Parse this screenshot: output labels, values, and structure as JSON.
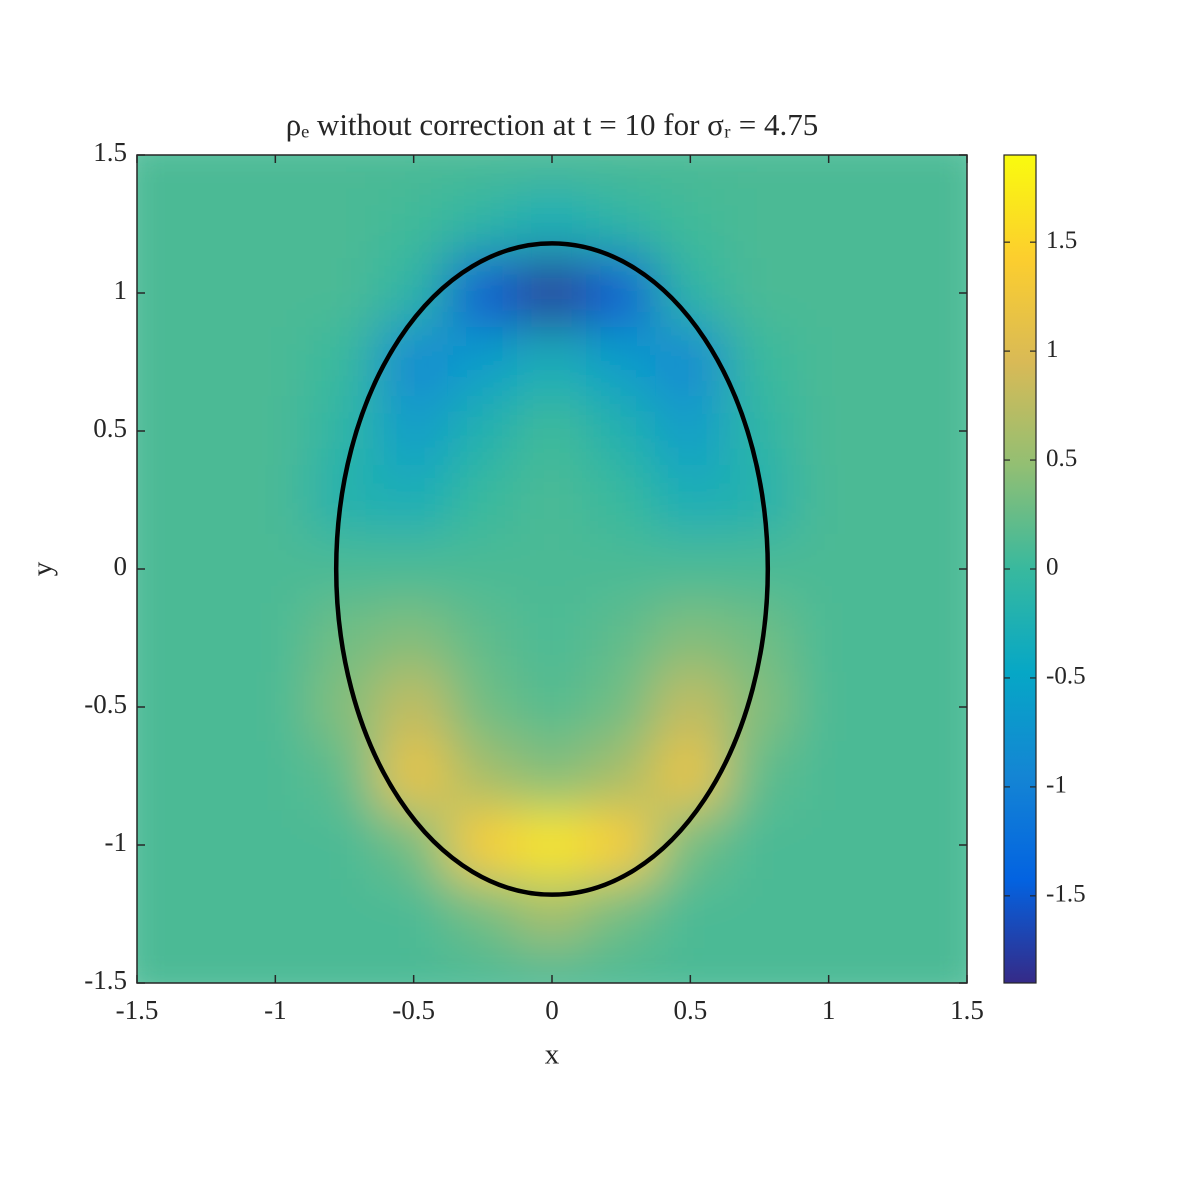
{
  "chart_data": {
    "type": "heatmap",
    "title": "ρₑ without correction at t = 10 for σᵣ = 4.75",
    "x_label": "x",
    "y_label": "y",
    "xlim": [
      -1.5,
      1.5
    ],
    "ylim": [
      -1.5,
      1.5
    ],
    "xticks": [
      -1.5,
      -1,
      -0.5,
      0,
      0.5,
      1,
      1.5
    ],
    "yticks": [
      -1.5,
      -1,
      -0.5,
      0,
      0.5,
      1,
      1.5
    ],
    "x": [
      -1.5,
      -1.25,
      -1,
      -0.75,
      -0.5,
      -0.25,
      0,
      0.25,
      0.5,
      0.75,
      1,
      1.25,
      1.5
    ],
    "y": [
      1.5,
      1.25,
      1,
      0.75,
      0.5,
      0.25,
      0,
      -0.25,
      -0.5,
      -0.75,
      -1,
      -1.25,
      -1.5
    ],
    "z": [
      [
        0.1,
        0.1,
        0.1,
        0.1,
        0.1,
        0.1,
        0.1,
        0.1,
        0.1,
        0.1,
        0.1,
        0.1,
        0.1
      ],
      [
        0.1,
        0.1,
        0.1,
        0.1,
        0.05,
        -0.1,
        -0.3,
        -0.1,
        0.05,
        0.1,
        0.1,
        0.1,
        0.1
      ],
      [
        0.1,
        0.1,
        0.1,
        0.1,
        -0.1,
        -1.5,
        -1.8,
        -1.5,
        -0.1,
        0.1,
        0.1,
        0.1,
        0.1
      ],
      [
        0.1,
        0.1,
        0.1,
        0,
        -0.9,
        -0.6,
        -0.3,
        -0.6,
        -0.9,
        0,
        0.1,
        0.1,
        0.1
      ],
      [
        0.1,
        0.1,
        0.1,
        -0.1,
        -0.6,
        -0.2,
        0.05,
        -0.2,
        -0.6,
        -0.1,
        0.1,
        0.1,
        0.1
      ],
      [
        0.1,
        0.1,
        0.1,
        -0.2,
        -0.3,
        0,
        0.1,
        0,
        -0.3,
        -0.2,
        0.1,
        0.1,
        0.1
      ],
      [
        0.1,
        0.1,
        0.1,
        0.1,
        0.1,
        0.1,
        0.1,
        0.1,
        0.1,
        0.1,
        0.1,
        0.1,
        0.1
      ],
      [
        0.1,
        0.1,
        0.1,
        0.3,
        0.4,
        0.2,
        0.1,
        0.2,
        0.4,
        0.3,
        0.1,
        0.1,
        0.1
      ],
      [
        0.1,
        0.1,
        0.1,
        0.4,
        0.8,
        0.3,
        0.15,
        0.3,
        0.8,
        0.4,
        0.1,
        0.1,
        0.1
      ],
      [
        0.1,
        0.1,
        0.1,
        0.2,
        1.2,
        0.6,
        0.4,
        0.6,
        1.2,
        0.2,
        0.1,
        0.1,
        0.1
      ],
      [
        0.1,
        0.1,
        0.1,
        0.1,
        0.3,
        1.4,
        1.7,
        1.4,
        0.3,
        0.1,
        0.1,
        0.1,
        0.1
      ],
      [
        0.1,
        0.1,
        0.1,
        0.1,
        0.1,
        0.3,
        0.6,
        0.3,
        0.1,
        0.1,
        0.1,
        0.1,
        0.1
      ],
      [
        0.1,
        0.1,
        0.1,
        0.1,
        0.1,
        0.1,
        0.1,
        0.1,
        0.1,
        0.1,
        0.1,
        0.1,
        0.1
      ]
    ],
    "clim": [
      -1.9,
      1.9
    ],
    "colorbar_ticks": [
      -1.5,
      -1,
      -0.5,
      0,
      0.5,
      1,
      1.5
    ],
    "colormap": [
      "#352a87",
      "#0363e1",
      "#1485d4",
      "#06a7c6",
      "#38b99e",
      "#92bf73",
      "#d9ba56",
      "#fcce2e",
      "#f9fb0e"
    ],
    "ellipse": {
      "rx": 0.78,
      "ry": 1.18,
      "color": "#000000"
    }
  }
}
